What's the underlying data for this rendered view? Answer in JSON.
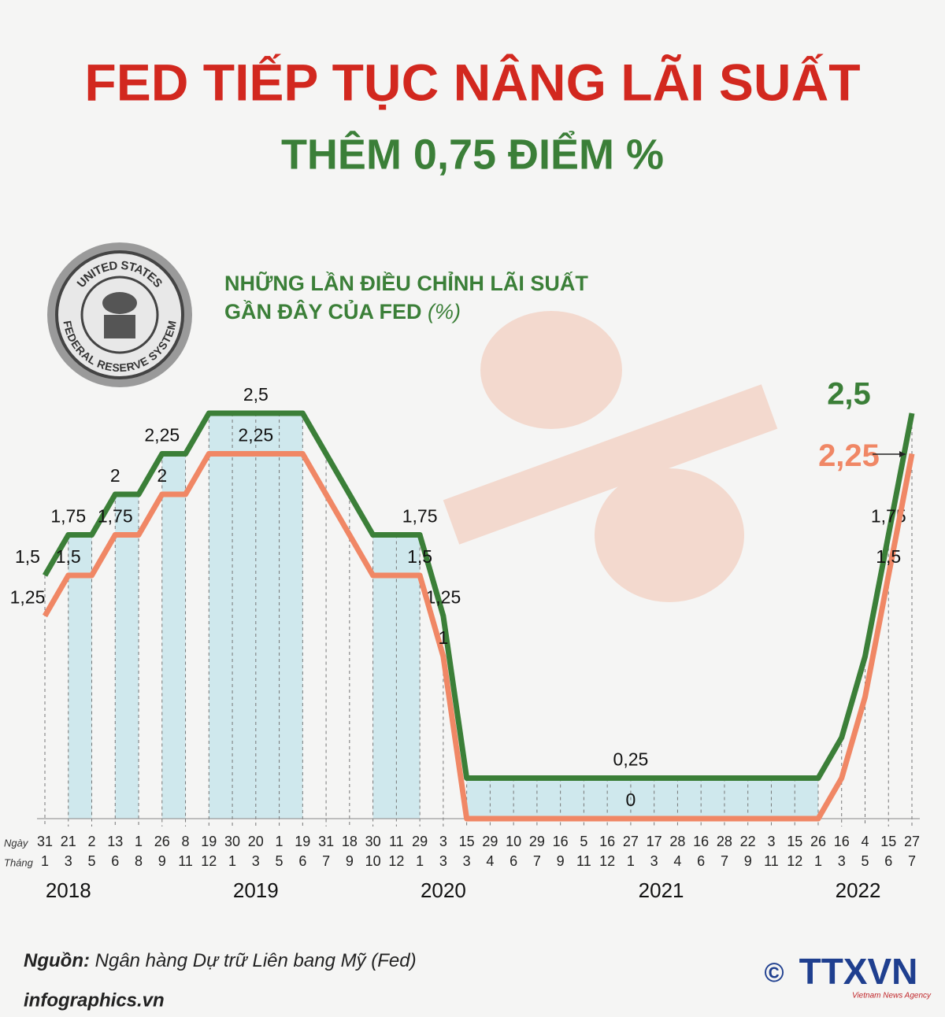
{
  "header": {
    "title": "FED TIẾP TỤC NÂNG LÃI SUẤT",
    "subtitle": "THÊM 0,75 ĐIỂM %"
  },
  "seal": {
    "top": "UNITED STATES",
    "bottom": "FEDERAL RESERVE SYSTEM"
  },
  "chart_data": {
    "type": "line",
    "title_lines": [
      "NHỮNG LẦN ĐIỀU CHỈNH LÃI SUẤT",
      "GẦN ĐÂY CỦA FED",
      "(%)"
    ],
    "row_labels": [
      "Ngày",
      "Tháng"
    ],
    "days": [
      31,
      21,
      2,
      13,
      1,
      26,
      8,
      19,
      30,
      20,
      1,
      19,
      31,
      18,
      30,
      11,
      29,
      3,
      15,
      29,
      10,
      29,
      16,
      5,
      16,
      27,
      17,
      28,
      16,
      28,
      22,
      3,
      15,
      26,
      16,
      4,
      15,
      27
    ],
    "months": [
      1,
      3,
      5,
      6,
      8,
      9,
      11,
      12,
      1,
      3,
      5,
      6,
      7,
      9,
      10,
      12,
      1,
      3,
      3,
      4,
      6,
      7,
      9,
      11,
      12,
      1,
      3,
      4,
      6,
      7,
      9,
      11,
      12,
      1,
      3,
      5,
      6,
      7
    ],
    "years": [
      "2018",
      "2019",
      "2020",
      "2021",
      "2022"
    ],
    "ylim": [
      0,
      2.5
    ],
    "series": [
      {
        "color": "#3b7f38",
        "values": [
          1.5,
          1.75,
          1.75,
          2,
          2,
          2.25,
          2.25,
          2.5,
          2.5,
          2.5,
          2.5,
          2.5,
          2.25,
          2,
          1.75,
          1.75,
          1.75,
          1.25,
          0.25,
          0.25,
          0.25,
          0.25,
          0.25,
          0.25,
          0.25,
          0.25,
          0.25,
          0.25,
          0.25,
          0.25,
          0.25,
          0.25,
          0.25,
          0.25,
          0.5,
          1,
          1.75,
          2.5
        ],
        "value_labels": [
          "1,5",
          "1,75",
          null,
          "2",
          null,
          "2,25",
          null,
          null,
          null,
          "2,5",
          null,
          null,
          null,
          null,
          null,
          null,
          "1,75",
          "1,25",
          null,
          null,
          null,
          null,
          null,
          null,
          null,
          "0,25",
          null,
          null,
          null,
          null,
          null,
          null,
          null,
          null,
          null,
          null,
          "1,75",
          "2,5"
        ]
      },
      {
        "color": "#f08765",
        "values": [
          1.25,
          1.5,
          1.5,
          1.75,
          1.75,
          2,
          2,
          2.25,
          2.25,
          2.25,
          2.25,
          2.25,
          2,
          1.75,
          1.5,
          1.5,
          1.5,
          1,
          0,
          0,
          0,
          0,
          0,
          0,
          0,
          0,
          0,
          0,
          0,
          0,
          0,
          0,
          0,
          0,
          0.25,
          0.75,
          1.5,
          2.25
        ],
        "value_labels": [
          "1,25",
          "1,5",
          null,
          "1,75",
          null,
          "2",
          null,
          null,
          null,
          "2,25",
          null,
          null,
          null,
          null,
          null,
          null,
          "1,5",
          "1",
          null,
          null,
          null,
          null,
          null,
          null,
          null,
          "0",
          null,
          null,
          null,
          null,
          null,
          null,
          null,
          null,
          null,
          null,
          "1,5",
          "2,25"
        ]
      }
    ]
  },
  "footer": {
    "source_label": "Nguồn:",
    "source": "Ngân hàng Dự trữ Liên bang Mỹ (Fed)",
    "website": "infographics.vn",
    "copyright": "©",
    "agency": "TTXVN",
    "agency_en": "Vietnam News Agency"
  }
}
